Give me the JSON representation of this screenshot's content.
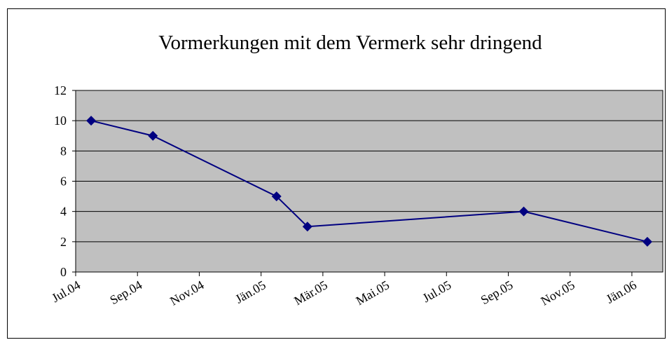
{
  "chart_data": {
    "type": "line",
    "title": "Vormerkungen mit dem Vermerk sehr dringend",
    "x": [
      "2004-07",
      "2004-09",
      "2005-01",
      "2005-02",
      "2005-09",
      "2006-01"
    ],
    "series": [
      {
        "color": "#000080",
        "values": [
          10,
          9,
          5,
          3,
          4,
          2
        ]
      }
    ],
    "xlim": [
      "2004-07",
      "2006-02"
    ],
    "xticks": [
      {
        "value": "2004-07",
        "label": "Jul.04"
      },
      {
        "value": "2004-09",
        "label": "Sep.04"
      },
      {
        "value": "2004-11",
        "label": "Nov.04"
      },
      {
        "value": "2005-01",
        "label": "Jän.05"
      },
      {
        "value": "2005-03",
        "label": "Mär.05"
      },
      {
        "value": "2005-05",
        "label": "Mai.05"
      },
      {
        "value": "2005-07",
        "label": "Jul.05"
      },
      {
        "value": "2005-09",
        "label": "Sep.05"
      },
      {
        "value": "2005-11",
        "label": "Nov.05"
      },
      {
        "value": "2006-01",
        "label": "Jän.06"
      }
    ],
    "ylim": [
      0,
      12
    ],
    "yticks": [
      0,
      2,
      4,
      6,
      8,
      10,
      12
    ],
    "grid": true,
    "plot_color": "#c0c0c0"
  }
}
